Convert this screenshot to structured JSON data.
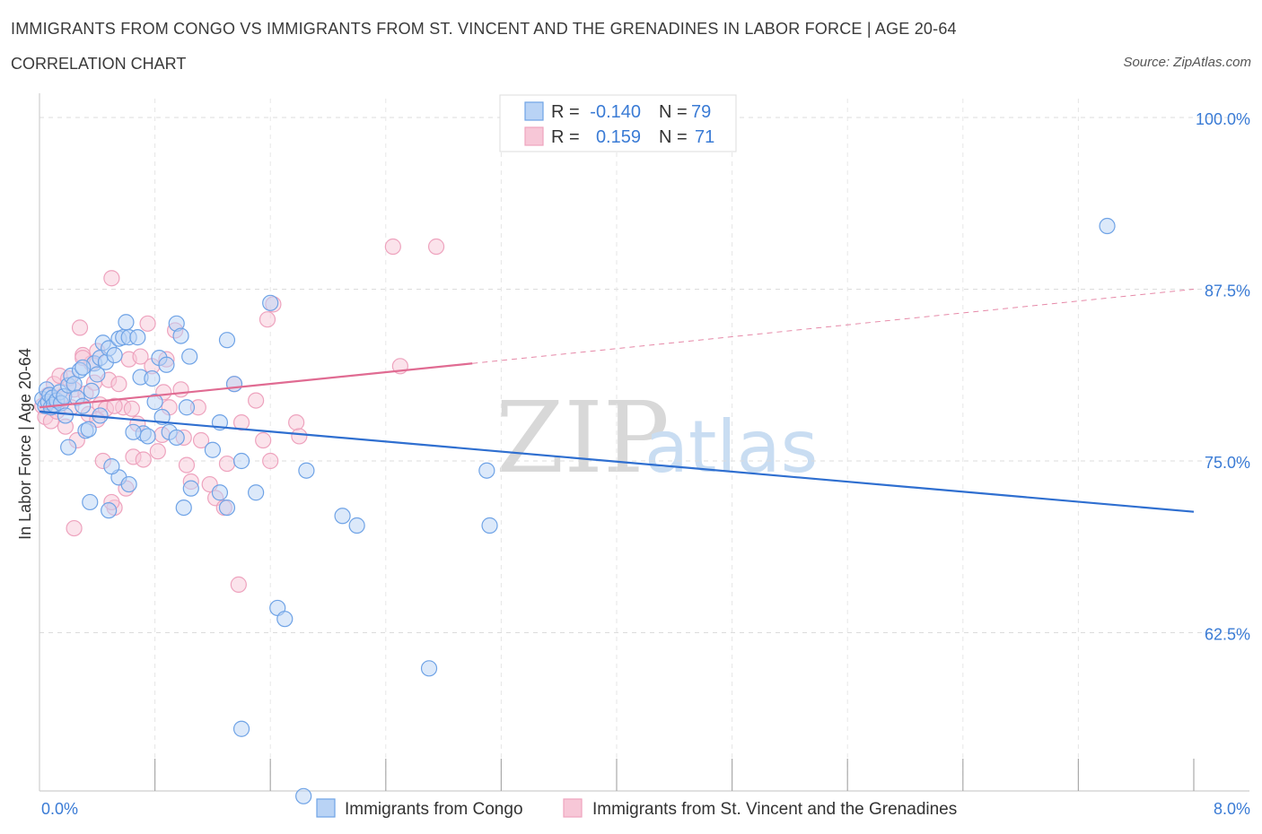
{
  "title": "IMMIGRANTS FROM CONGO VS IMMIGRANTS FROM ST. VINCENT AND THE GRENADINES IN LABOR FORCE | AGE 20-64",
  "subtitle": "CORRELATION CHART",
  "source": "Source: ZipAtlas.com",
  "watermark": {
    "zip": "ZIP",
    "atlas": "atlas"
  },
  "legend": {
    "rows": [
      {
        "r_label": "R =",
        "r_value": "-0.140",
        "n_label": "N =",
        "n_value": "79"
      },
      {
        "r_label": "R =",
        "r_value": "0.159",
        "n_label": "N =",
        "n_value": "71"
      }
    ]
  },
  "chart_data": {
    "type": "scatter",
    "title": "IMMIGRANTS FROM CONGO VS IMMIGRANTS FROM ST. VINCENT AND THE GRENADINES IN LABOR FORCE | AGE 20-64",
    "subtitle": "CORRELATION CHART",
    "ylabel": "In Labor Force | Age 20-64",
    "xlabel": "",
    "xlim": [
      0,
      8
    ],
    "ylim": [
      50.5,
      103
    ],
    "y_ticks": [
      100,
      87.5,
      75,
      62.5
    ],
    "y_tick_labels": [
      "100.0%",
      "87.5%",
      "75.0%",
      "62.5%"
    ],
    "x_tick_labels": [
      "0.0%",
      "8.0%"
    ],
    "grid": true,
    "legend_position": "top-center",
    "series": [
      {
        "name": "Immigrants from Congo",
        "color": "#6fa3e6",
        "fill": "#b9d3f5",
        "line_color": "#2f6fd0",
        "trend": {
          "x": [
            0,
            8
          ],
          "y": [
            78.6,
            71.3
          ]
        },
        "points": [
          [
            0.02,
            79.5
          ],
          [
            0.04,
            79.0
          ],
          [
            0.05,
            80.2
          ],
          [
            0.06,
            79.3
          ],
          [
            0.07,
            79.8
          ],
          [
            0.08,
            78.9
          ],
          [
            0.09,
            79.6
          ],
          [
            0.1,
            79.1
          ],
          [
            0.12,
            79.4
          ],
          [
            0.14,
            80.0
          ],
          [
            0.15,
            79.2
          ],
          [
            0.17,
            79.7
          ],
          [
            0.18,
            78.3
          ],
          [
            0.2,
            80.5
          ],
          [
            0.22,
            81.2
          ],
          [
            0.24,
            80.6
          ],
          [
            0.26,
            79.6
          ],
          [
            0.28,
            81.6
          ],
          [
            0.3,
            79.0
          ],
          [
            0.32,
            77.2
          ],
          [
            0.34,
            77.3
          ],
          [
            0.36,
            80.1
          ],
          [
            0.38,
            82.1
          ],
          [
            0.4,
            81.3
          ],
          [
            0.42,
            82.5
          ],
          [
            0.44,
            83.6
          ],
          [
            0.46,
            82.2
          ],
          [
            0.48,
            83.2
          ],
          [
            0.52,
            82.7
          ],
          [
            0.55,
            83.9
          ],
          [
            0.58,
            84.0
          ],
          [
            0.6,
            85.1
          ],
          [
            0.62,
            84.0
          ],
          [
            0.7,
            81.1
          ],
          [
            0.72,
            77.0
          ],
          [
            0.75,
            76.8
          ],
          [
            0.78,
            81.0
          ],
          [
            0.8,
            79.3
          ],
          [
            0.83,
            82.5
          ],
          [
            0.85,
            78.2
          ],
          [
            0.88,
            82.0
          ],
          [
            0.9,
            77.1
          ],
          [
            0.95,
            85.0
          ],
          [
            0.98,
            84.1
          ],
          [
            1.02,
            78.9
          ],
          [
            1.04,
            82.6
          ],
          [
            1.2,
            75.8
          ],
          [
            1.25,
            77.8
          ],
          [
            1.3,
            83.8
          ],
          [
            1.35,
            80.6
          ],
          [
            1.4,
            75.0
          ],
          [
            1.5,
            72.7
          ],
          [
            1.6,
            86.5
          ],
          [
            1.65,
            64.3
          ],
          [
            1.7,
            63.5
          ],
          [
            1.85,
            74.3
          ],
          [
            2.1,
            71.0
          ],
          [
            2.2,
            70.3
          ],
          [
            1.4,
            55.5
          ],
          [
            2.7,
            59.9
          ],
          [
            1.83,
            50.6
          ],
          [
            0.48,
            71.4
          ],
          [
            0.65,
            77.1
          ],
          [
            0.95,
            76.7
          ],
          [
            1.0,
            71.6
          ],
          [
            1.05,
            73.0
          ],
          [
            1.25,
            72.7
          ],
          [
            1.3,
            71.6
          ],
          [
            0.35,
            72.0
          ],
          [
            0.55,
            73.8
          ],
          [
            0.62,
            73.3
          ],
          [
            7.4,
            92.1
          ],
          [
            3.1,
            74.3
          ],
          [
            3.12,
            70.3
          ],
          [
            0.2,
            76.0
          ],
          [
            0.42,
            78.3
          ],
          [
            0.5,
            74.6
          ],
          [
            0.68,
            84.0
          ],
          [
            0.3,
            81.8
          ]
        ]
      },
      {
        "name": "Immigrants from St. Vincent and the Grenadines",
        "color": "#eea3be",
        "fill": "#f7c7d7",
        "line_color": "#e06b92",
        "trend": {
          "x": [
            0,
            3
          ],
          "y": [
            78.9,
            82.1
          ]
        },
        "trend_extension": {
          "x": [
            3,
            8
          ],
          "y": [
            82.1,
            87.5
          ]
        },
        "points": [
          [
            0.02,
            79.0
          ],
          [
            0.04,
            78.2
          ],
          [
            0.06,
            79.8
          ],
          [
            0.08,
            77.9
          ],
          [
            0.1,
            80.6
          ],
          [
            0.12,
            78.6
          ],
          [
            0.14,
            81.2
          ],
          [
            0.16,
            79.5
          ],
          [
            0.18,
            77.5
          ],
          [
            0.2,
            81.0
          ],
          [
            0.22,
            78.9
          ],
          [
            0.24,
            80.2
          ],
          [
            0.26,
            76.5
          ],
          [
            0.28,
            84.7
          ],
          [
            0.3,
            82.7
          ],
          [
            0.32,
            79.9
          ],
          [
            0.34,
            78.4
          ],
          [
            0.36,
            82.1
          ],
          [
            0.38,
            80.7
          ],
          [
            0.4,
            83.0
          ],
          [
            0.42,
            79.1
          ],
          [
            0.44,
            75.0
          ],
          [
            0.46,
            78.8
          ],
          [
            0.48,
            80.9
          ],
          [
            0.5,
            88.3
          ],
          [
            0.52,
            71.6
          ],
          [
            0.55,
            80.6
          ],
          [
            0.58,
            78.9
          ],
          [
            0.62,
            82.4
          ],
          [
            0.65,
            75.3
          ],
          [
            0.68,
            77.7
          ],
          [
            0.7,
            82.6
          ],
          [
            0.72,
            75.1
          ],
          [
            0.75,
            85.0
          ],
          [
            0.78,
            81.9
          ],
          [
            0.82,
            75.7
          ],
          [
            0.85,
            76.9
          ],
          [
            0.88,
            82.4
          ],
          [
            0.9,
            78.9
          ],
          [
            0.94,
            84.5
          ],
          [
            0.98,
            80.2
          ],
          [
            1.0,
            76.7
          ],
          [
            1.02,
            74.7
          ],
          [
            1.05,
            73.5
          ],
          [
            1.1,
            78.9
          ],
          [
            1.12,
            76.5
          ],
          [
            1.18,
            73.3
          ],
          [
            1.22,
            72.3
          ],
          [
            1.28,
            71.6
          ],
          [
            1.35,
            80.6
          ],
          [
            1.4,
            77.8
          ],
          [
            1.5,
            79.4
          ],
          [
            1.55,
            76.5
          ],
          [
            1.6,
            75.0
          ],
          [
            1.62,
            86.4
          ],
          [
            1.58,
            85.3
          ],
          [
            1.78,
            77.8
          ],
          [
            1.8,
            76.8
          ],
          [
            2.45,
            90.6
          ],
          [
            2.75,
            90.6
          ],
          [
            2.5,
            81.9
          ],
          [
            1.38,
            66.0
          ],
          [
            0.24,
            70.1
          ],
          [
            0.5,
            72.0
          ],
          [
            0.6,
            73.0
          ],
          [
            1.3,
            74.8
          ],
          [
            0.3,
            82.5
          ],
          [
            0.4,
            78.0
          ],
          [
            0.52,
            79.0
          ],
          [
            0.64,
            78.8
          ],
          [
            0.86,
            80.0
          ]
        ]
      }
    ]
  }
}
